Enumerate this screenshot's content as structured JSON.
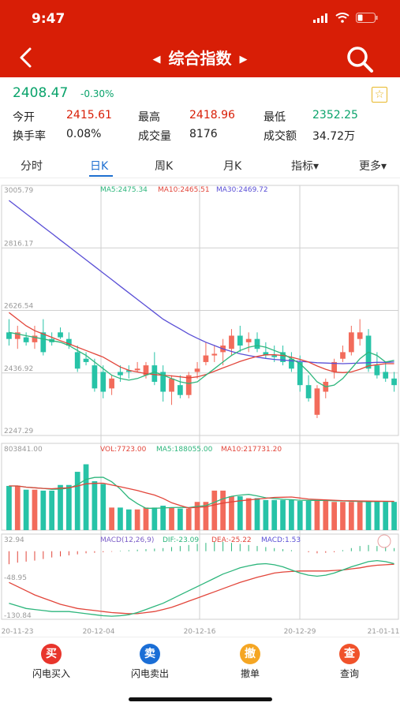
{
  "status": {
    "time": "9:47"
  },
  "nav": {
    "title": "综合指数",
    "prev_arrow": "◀",
    "next_arrow": "▶"
  },
  "quote": {
    "price": "2408.47",
    "change_pct": "-0.30%",
    "rows": [
      {
        "l1": "今开",
        "v1": "2415.61",
        "c1": "#d81e06",
        "l2": "最高",
        "v2": "2418.96",
        "c2": "#d81e06",
        "l3": "最低",
        "v3": "2352.25",
        "c3": "#0aa36b"
      },
      {
        "l1": "换手率",
        "v1": "0.08%",
        "c1": "#222",
        "l2": "成交量",
        "v2": "8176",
        "c2": "#222",
        "l3": "成交额",
        "v3": "34.72万",
        "c3": "#222"
      }
    ]
  },
  "tabs": [
    {
      "label": "分时"
    },
    {
      "label": "日K"
    },
    {
      "label": "周K"
    },
    {
      "label": "月K"
    },
    {
      "label": "指标▾"
    },
    {
      "label": "更多▾"
    }
  ],
  "kline": {
    "y_ticks": [
      "3005.79",
      "2816.17",
      "2626.54",
      "2436.92",
      "2247.29"
    ],
    "ma_labels": {
      "ma5": "MA5:2475.34",
      "ma10": "MA10:2465.51",
      "ma30": "MA30:2469.72"
    },
    "candles": [
      [
        2560,
        2600,
        2520,
        2540
      ],
      [
        2540,
        2580,
        2510,
        2560
      ],
      [
        2545,
        2560,
        2520,
        2530
      ],
      [
        2530,
        2580,
        2510,
        2550
      ],
      [
        2560,
        2600,
        2490,
        2500
      ],
      [
        2540,
        2560,
        2520,
        2530
      ],
      [
        2560,
        2575,
        2540,
        2545
      ],
      [
        2540,
        2560,
        2510,
        2520
      ],
      [
        2500,
        2520,
        2440,
        2450
      ],
      [
        2480,
        2500,
        2460,
        2470
      ],
      [
        2460,
        2480,
        2380,
        2390
      ],
      [
        2440,
        2460,
        2360,
        2380
      ],
      [
        2390,
        2430,
        2370,
        2420
      ],
      [
        2440,
        2460,
        2410,
        2430
      ],
      [
        2445,
        2460,
        2420,
        2440
      ],
      [
        2445,
        2470,
        2440,
        2450
      ],
      [
        2430,
        2470,
        2420,
        2460
      ],
      [
        2460,
        2500,
        2400,
        2410
      ],
      [
        2440,
        2460,
        2350,
        2380
      ],
      [
        2380,
        2430,
        2340,
        2420
      ],
      [
        2400,
        2430,
        2360,
        2370
      ],
      [
        2370,
        2440,
        2360,
        2430
      ],
      [
        2440,
        2470,
        2420,
        2450
      ],
      [
        2470,
        2530,
        2460,
        2490
      ],
      [
        2490,
        2520,
        2470,
        2495
      ],
      [
        2500,
        2540,
        2460,
        2520
      ],
      [
        2510,
        2570,
        2490,
        2550
      ],
      [
        2550,
        2580,
        2500,
        2520
      ],
      [
        2530,
        2560,
        2500,
        2540
      ],
      [
        2540,
        2560,
        2500,
        2510
      ],
      [
        2500,
        2530,
        2480,
        2490
      ],
      [
        2490,
        2520,
        2470,
        2485
      ],
      [
        2500,
        2520,
        2460,
        2470
      ],
      [
        2480,
        2500,
        2440,
        2450
      ],
      [
        2470,
        2490,
        2380,
        2400
      ],
      [
        2400,
        2430,
        2350,
        2360
      ],
      [
        2310,
        2400,
        2300,
        2390
      ],
      [
        2380,
        2420,
        2360,
        2410
      ],
      [
        2440,
        2480,
        2420,
        2470
      ],
      [
        2480,
        2520,
        2470,
        2500
      ],
      [
        2500,
        2580,
        2490,
        2560
      ],
      [
        2540,
        2600,
        2520,
        2560
      ],
      [
        2550,
        2570,
        2440,
        2450
      ],
      [
        2460,
        2500,
        2420,
        2430
      ],
      [
        2440,
        2470,
        2410,
        2420
      ],
      [
        2420,
        2440,
        2380,
        2400
      ]
    ],
    "ma5": [
      2560,
      2555,
      2550,
      2545,
      2540,
      2535,
      2530,
      2520,
      2505,
      2490,
      2470,
      2450,
      2430,
      2420,
      2415,
      2420,
      2430,
      2440,
      2430,
      2420,
      2410,
      2405,
      2410,
      2430,
      2450,
      2470,
      2490,
      2505,
      2515,
      2520,
      2515,
      2505,
      2495,
      2480,
      2465,
      2440,
      2410,
      2395,
      2400,
      2420,
      2450,
      2480,
      2500,
      2490,
      2470,
      2475
    ],
    "ma10": [
      2620,
      2600,
      2580,
      2565,
      2555,
      2545,
      2535,
      2525,
      2515,
      2505,
      2495,
      2485,
      2470,
      2455,
      2445,
      2440,
      2435,
      2432,
      2430,
      2428,
      2425,
      2422,
      2425,
      2432,
      2442,
      2452,
      2462,
      2472,
      2480,
      2487,
      2492,
      2492,
      2490,
      2485,
      2478,
      2470,
      2458,
      2448,
      2440,
      2438,
      2440,
      2448,
      2458,
      2462,
      2465,
      2465
    ],
    "ma30": [
      2960,
      2940,
      2920,
      2900,
      2880,
      2860,
      2840,
      2820,
      2800,
      2780,
      2760,
      2740,
      2720,
      2700,
      2680,
      2660,
      2640,
      2620,
      2600,
      2585,
      2570,
      2555,
      2542,
      2530,
      2520,
      2510,
      2502,
      2495,
      2490,
      2485,
      2481,
      2478,
      2476,
      2474,
      2472,
      2470,
      2468,
      2467,
      2466,
      2465,
      2466,
      2467,
      2468,
      2469,
      2469,
      2470
    ],
    "min": 2247.29,
    "max": 3005.79
  },
  "volume": {
    "top_label": "803841.00",
    "labels": {
      "vol": "VOL:7723.00",
      "ma5": "MA5:188055.00",
      "ma10": "MA10:217731.20"
    },
    "values": [
      470,
      470,
      430,
      430,
      420,
      420,
      480,
      480,
      620,
      700,
      520,
      490,
      240,
      240,
      220,
      220,
      240,
      240,
      260,
      240,
      230,
      230,
      300,
      300,
      420,
      420,
      360,
      360,
      340,
      340,
      320,
      320,
      320,
      320,
      310,
      310,
      320,
      320,
      300,
      300,
      300,
      300,
      310,
      310,
      300,
      300
    ],
    "max": 803841
  },
  "macd": {
    "top": "32.94",
    "mid": "-48.95",
    "bottom": "-130.84",
    "labels": {
      "macd": "MACD(12,26,9)",
      "dif": "DIF:-23.09",
      "dea": "DEA:-25.22",
      "val": "MACD:1.53"
    },
    "bars": [
      -25,
      -22,
      -20,
      -18,
      -15,
      -12,
      -10,
      -8,
      -6,
      -4,
      -3,
      -2,
      -1,
      1,
      2,
      3,
      4,
      5,
      6,
      8,
      10,
      12,
      14,
      16,
      18,
      18,
      16,
      14,
      12,
      10,
      8,
      6,
      4,
      2,
      0,
      -2,
      -4,
      -3,
      -2,
      2,
      6,
      10,
      12,
      10,
      8,
      6
    ],
    "dif": [
      -100,
      -105,
      -110,
      -112,
      -114,
      -116,
      -116,
      -116,
      -118,
      -120,
      -122,
      -124,
      -125,
      -124,
      -122,
      -118,
      -112,
      -106,
      -100,
      -92,
      -84,
      -76,
      -68,
      -60,
      -52,
      -44,
      -38,
      -32,
      -28,
      -25,
      -24,
      -26,
      -30,
      -36,
      -42,
      -46,
      -48,
      -46,
      -42,
      -36,
      -30,
      -25,
      -20,
      -18,
      -20,
      -24
    ],
    "dea": [
      -60,
      -68,
      -76,
      -84,
      -90,
      -96,
      -102,
      -106,
      -110,
      -112,
      -114,
      -116,
      -118,
      -119,
      -120,
      -120,
      -118,
      -116,
      -112,
      -108,
      -102,
      -96,
      -90,
      -84,
      -78,
      -72,
      -66,
      -60,
      -55,
      -50,
      -46,
      -42,
      -40,
      -39,
      -38,
      -38,
      -38,
      -38,
      -37,
      -36,
      -34,
      -32,
      -29,
      -27,
      -26,
      -25
    ],
    "min": -130.84,
    "max": 32.94
  },
  "x_labels": [
    "20-11-23",
    "20-12-04",
    "20-12-16",
    "20-12-29",
    "21-01-11"
  ],
  "actions": [
    {
      "glyph": "买",
      "label": "闪电买入",
      "color": "#e8352c"
    },
    {
      "glyph": "卖",
      "label": "闪电卖出",
      "color": "#1a6ed6"
    },
    {
      "glyph": "撤",
      "label": "撤单",
      "color": "#f5a623"
    },
    {
      "glyph": "查",
      "label": "查询",
      "color": "#f0522b"
    }
  ],
  "colors": {
    "up": "#f26b5b",
    "down": "#27c3a7",
    "ma5": "#2db67c",
    "ma10": "#e2453a",
    "ma30": "#5a4fd6",
    "grid": "#cfcfcf"
  }
}
